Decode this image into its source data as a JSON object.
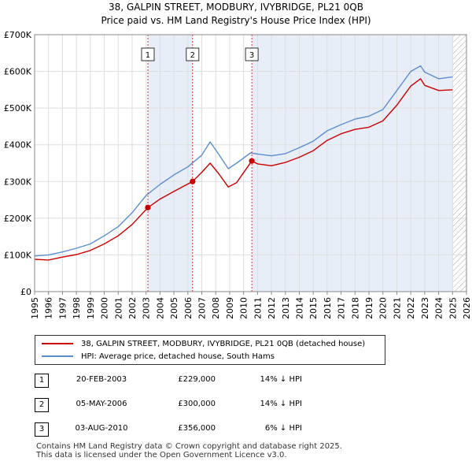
{
  "title_line1": "38, GALPIN STREET, MODBURY, IVYBRIDGE, PL21 0QB",
  "title_line2": "Price paid vs. HM Land Registry's House Price Index (HPI)",
  "colors": {
    "property_line": "#cc0000",
    "hpi_line": "#5b8ecf",
    "sale_shade": "#e8eef8",
    "sale_marker_line": "#cc0000",
    "hatch": "#aaaaaa",
    "grid": "#dddddd"
  },
  "chart_data": {
    "type": "line",
    "title": "Price paid vs. HM Land Registry's House Price Index (HPI)",
    "xlabel": "",
    "ylabel": "",
    "xlim": [
      1995,
      2026
    ],
    "ylim": [
      0,
      700000
    ],
    "y_ticks": [
      0,
      100000,
      200000,
      300000,
      400000,
      500000,
      600000,
      700000
    ],
    "y_tick_labels": [
      "£0",
      "£100K",
      "£200K",
      "£300K",
      "£400K",
      "£500K",
      "£600K",
      "£700K"
    ],
    "x_tick_labels": [
      "1995",
      "1996",
      "1997",
      "1998",
      "1999",
      "2000",
      "2001",
      "2002",
      "2003",
      "2004",
      "2005",
      "2006",
      "2007",
      "2008",
      "2009",
      "2010",
      "2011",
      "2012",
      "2013",
      "2014",
      "2015",
      "2016",
      "2017",
      "2018",
      "2019",
      "2020",
      "2021",
      "2022",
      "2023",
      "2024",
      "2025",
      "2026"
    ],
    "hatch_from": 2025.0,
    "series": [
      {
        "name": "38, GALPIN STREET, MODBURY, IVYBRIDGE, PL21 0QB (detached house)",
        "color": "#cc0000",
        "points": [
          [
            1995,
            88000
          ],
          [
            1996,
            86000
          ],
          [
            1997,
            94000
          ],
          [
            1998,
            101000
          ],
          [
            1999,
            112000
          ],
          [
            2000,
            130000
          ],
          [
            2001,
            152000
          ],
          [
            2002,
            183000
          ],
          [
            2003.13,
            229000
          ],
          [
            2004,
            252000
          ],
          [
            2005,
            273000
          ],
          [
            2006.34,
            300000
          ],
          [
            2007,
            325000
          ],
          [
            2007.6,
            350000
          ],
          [
            2008.2,
            322000
          ],
          [
            2008.9,
            285000
          ],
          [
            2009.5,
            297000
          ],
          [
            2010.59,
            356000
          ],
          [
            2011,
            348000
          ],
          [
            2012,
            343000
          ],
          [
            2013,
            352000
          ],
          [
            2014,
            366000
          ],
          [
            2015,
            384000
          ],
          [
            2016,
            412000
          ],
          [
            2017,
            430000
          ],
          [
            2018,
            442000
          ],
          [
            2019,
            448000
          ],
          [
            2020,
            465000
          ],
          [
            2021,
            508000
          ],
          [
            2022,
            560000
          ],
          [
            2022.7,
            580000
          ],
          [
            2023,
            562000
          ],
          [
            2024,
            548000
          ],
          [
            2025,
            550000
          ]
        ]
      },
      {
        "name": "HPI: Average price, detached house, South Hams",
        "color": "#5b8ecf",
        "points": [
          [
            1995,
            97000
          ],
          [
            1996,
            100000
          ],
          [
            1997,
            108000
          ],
          [
            1998,
            118000
          ],
          [
            1999,
            130000
          ],
          [
            2000,
            152000
          ],
          [
            2001,
            177000
          ],
          [
            2002,
            215000
          ],
          [
            2003,
            262000
          ],
          [
            2004,
            292000
          ],
          [
            2005,
            318000
          ],
          [
            2006,
            340000
          ],
          [
            2007,
            372000
          ],
          [
            2007.6,
            408000
          ],
          [
            2008.2,
            375000
          ],
          [
            2008.9,
            335000
          ],
          [
            2009.5,
            350000
          ],
          [
            2010.5,
            378000
          ],
          [
            2011,
            375000
          ],
          [
            2012,
            370000
          ],
          [
            2013,
            376000
          ],
          [
            2014,
            392000
          ],
          [
            2015,
            410000
          ],
          [
            2016,
            438000
          ],
          [
            2017,
            455000
          ],
          [
            2018,
            470000
          ],
          [
            2019,
            478000
          ],
          [
            2020,
            496000
          ],
          [
            2021,
            548000
          ],
          [
            2022,
            600000
          ],
          [
            2022.7,
            615000
          ],
          [
            2023,
            598000
          ],
          [
            2024,
            580000
          ],
          [
            2025,
            585000
          ]
        ]
      }
    ],
    "sales": [
      {
        "n": "1",
        "x": 2003.13,
        "price": 229000
      },
      {
        "n": "2",
        "x": 2006.34,
        "price": 300000
      },
      {
        "n": "3",
        "x": 2010.59,
        "price": 356000
      }
    ]
  },
  "legend": {
    "property": "38, GALPIN STREET, MODBURY, IVYBRIDGE, PL21 0QB (detached house)",
    "hpi": "HPI: Average price, detached house, South Hams"
  },
  "sales_table": [
    {
      "n": "1",
      "date": "20-FEB-2003",
      "price": "£229,000",
      "hpi": "14% ↓ HPI"
    },
    {
      "n": "2",
      "date": "05-MAY-2006",
      "price": "£300,000",
      "hpi": "14% ↓ HPI"
    },
    {
      "n": "3",
      "date": "03-AUG-2010",
      "price": "£356,000",
      "hpi": "6% ↓ HPI"
    }
  ],
  "footer_line1": "Contains HM Land Registry data © Crown copyright and database right 2025.",
  "footer_line2": "This data is licensed under the Open Government Licence v3.0."
}
